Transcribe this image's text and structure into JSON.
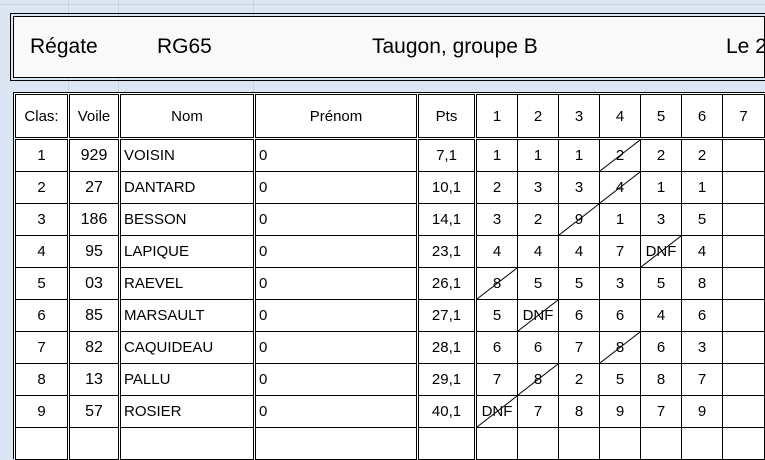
{
  "title_bar": {
    "label_regate": "Régate",
    "class": "RG65",
    "location": "Taugon, groupe B",
    "date_prefix": "Le 2"
  },
  "columns": [
    "Clas:",
    "Voile",
    "Nom",
    "Prénom",
    "Pts",
    "1",
    "2",
    "3",
    "4",
    "5",
    "6",
    "7"
  ],
  "rows": [
    {
      "clas": "1",
      "voile": "929",
      "nom": "VOISIN",
      "prenom": "0",
      "pts": "7,1",
      "races": [
        "1",
        "1",
        "1",
        "2",
        "2",
        "2",
        ""
      ],
      "discarded": 4
    },
    {
      "clas": "2",
      "voile": "27",
      "nom": "DANTARD",
      "prenom": "0",
      "pts": "10,1",
      "races": [
        "2",
        "3",
        "3",
        "4",
        "1",
        "1",
        ""
      ],
      "discarded": 4
    },
    {
      "clas": "3",
      "voile": "186",
      "nom": "BESSON",
      "prenom": "0",
      "pts": "14,1",
      "races": [
        "3",
        "2",
        "9",
        "1",
        "3",
        "5",
        ""
      ],
      "discarded": 3
    },
    {
      "clas": "4",
      "voile": "95",
      "nom": "LAPIQUE",
      "prenom": "0",
      "pts": "23,1",
      "races": [
        "4",
        "4",
        "4",
        "7",
        "DNF",
        "4",
        ""
      ],
      "discarded": 5
    },
    {
      "clas": "5",
      "voile": "03",
      "nom": "RAEVEL",
      "prenom": "0",
      "pts": "26,1",
      "races": [
        "8",
        "5",
        "5",
        "3",
        "5",
        "8",
        ""
      ],
      "discarded": 1
    },
    {
      "clas": "6",
      "voile": "85",
      "nom": "MARSAULT",
      "prenom": "0",
      "pts": "27,1",
      "races": [
        "5",
        "DNF",
        "6",
        "6",
        "4",
        "6",
        ""
      ],
      "discarded": 2
    },
    {
      "clas": "7",
      "voile": "82",
      "nom": "CAQUIDEAU",
      "prenom": "0",
      "pts": "28,1",
      "races": [
        "6",
        "6",
        "7",
        "8",
        "6",
        "3",
        ""
      ],
      "discarded": 4
    },
    {
      "clas": "8",
      "voile": "13",
      "nom": "PALLU",
      "prenom": "0",
      "pts": "29,1",
      "races": [
        "7",
        "8",
        "2",
        "5",
        "8",
        "7",
        ""
      ],
      "discarded": 2
    },
    {
      "clas": "9",
      "voile": "57",
      "nom": "ROSIER",
      "prenom": "0",
      "pts": "40,1",
      "races": [
        "DNF",
        "7",
        "8",
        "9",
        "7",
        "9",
        ""
      ],
      "discarded": 1
    }
  ]
}
